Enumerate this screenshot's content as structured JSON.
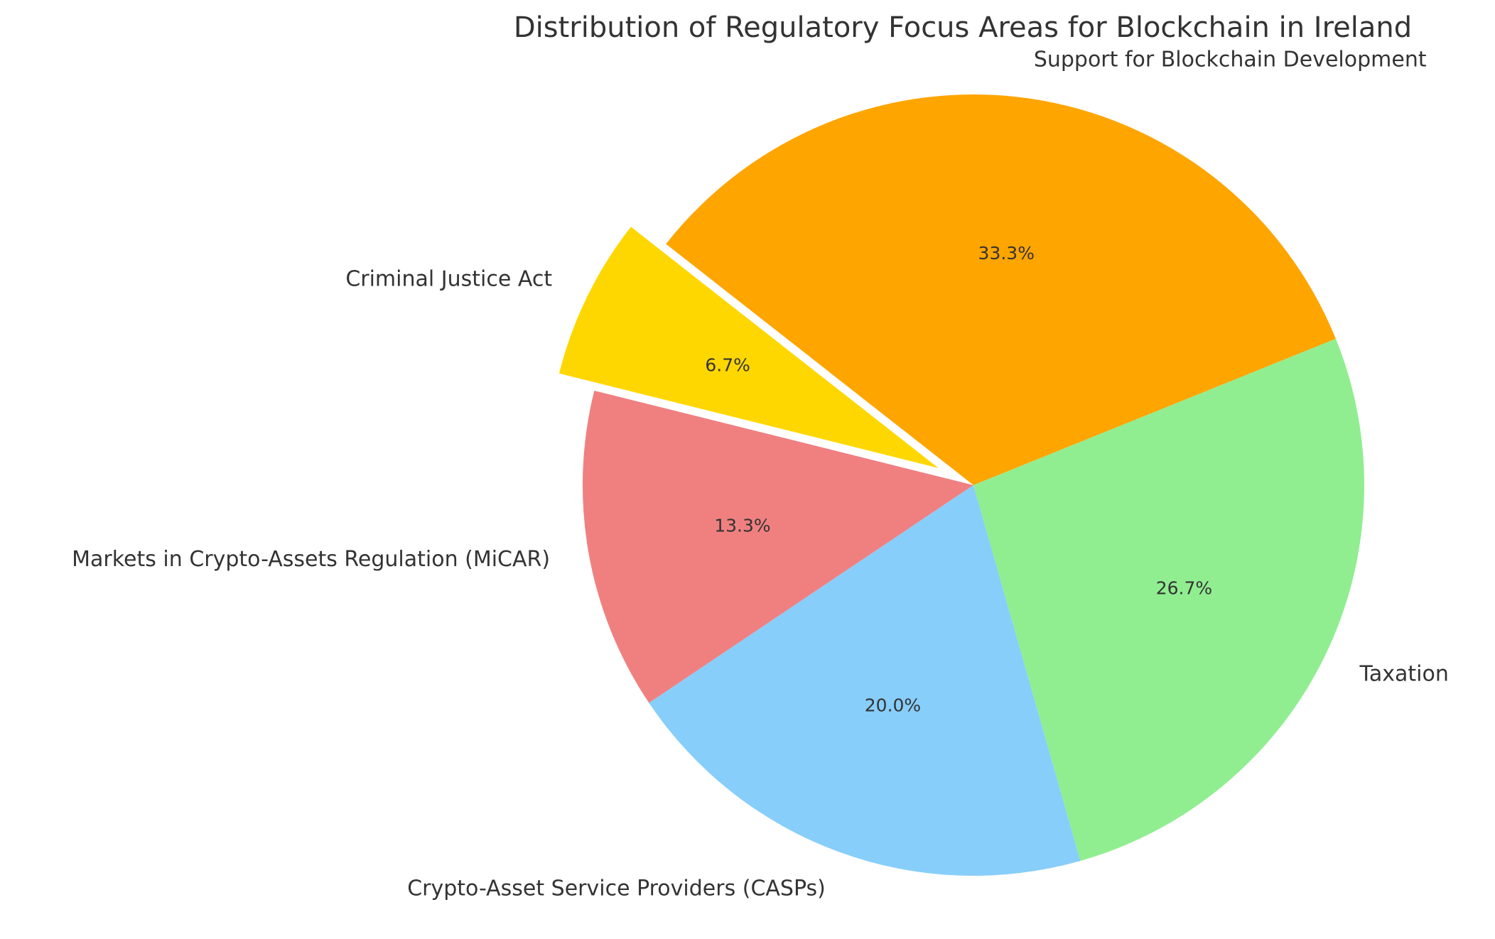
{
  "chart_data": {
    "type": "pie",
    "title": "Distribution of Regulatory Focus Areas for Blockchain in Ireland",
    "slices": [
      {
        "label": "Support for Blockchain Development",
        "value": 33.3,
        "pct_label": "33.3%",
        "color": "#FFA500",
        "exploded": false
      },
      {
        "label": "Criminal Justice Act",
        "value": 6.7,
        "pct_label": "6.7%",
        "color": "#FFD700",
        "exploded": true
      },
      {
        "label": "Markets in Crypto-Assets Regulation (MiCAR)",
        "value": 13.3,
        "pct_label": "13.3%",
        "color": "#F08080",
        "exploded": false
      },
      {
        "label": "Crypto-Asset Service Providers (CASPs)",
        "value": 20.0,
        "pct_label": "20.0%",
        "color": "#87CEFA",
        "exploded": false
      },
      {
        "label": "Taxation",
        "value": 26.7,
        "pct_label": "26.7%",
        "color": "#90EE90",
        "exploded": false
      }
    ],
    "start_angle_deg": 22,
    "direction": "counterclockwise",
    "legend": "none"
  }
}
